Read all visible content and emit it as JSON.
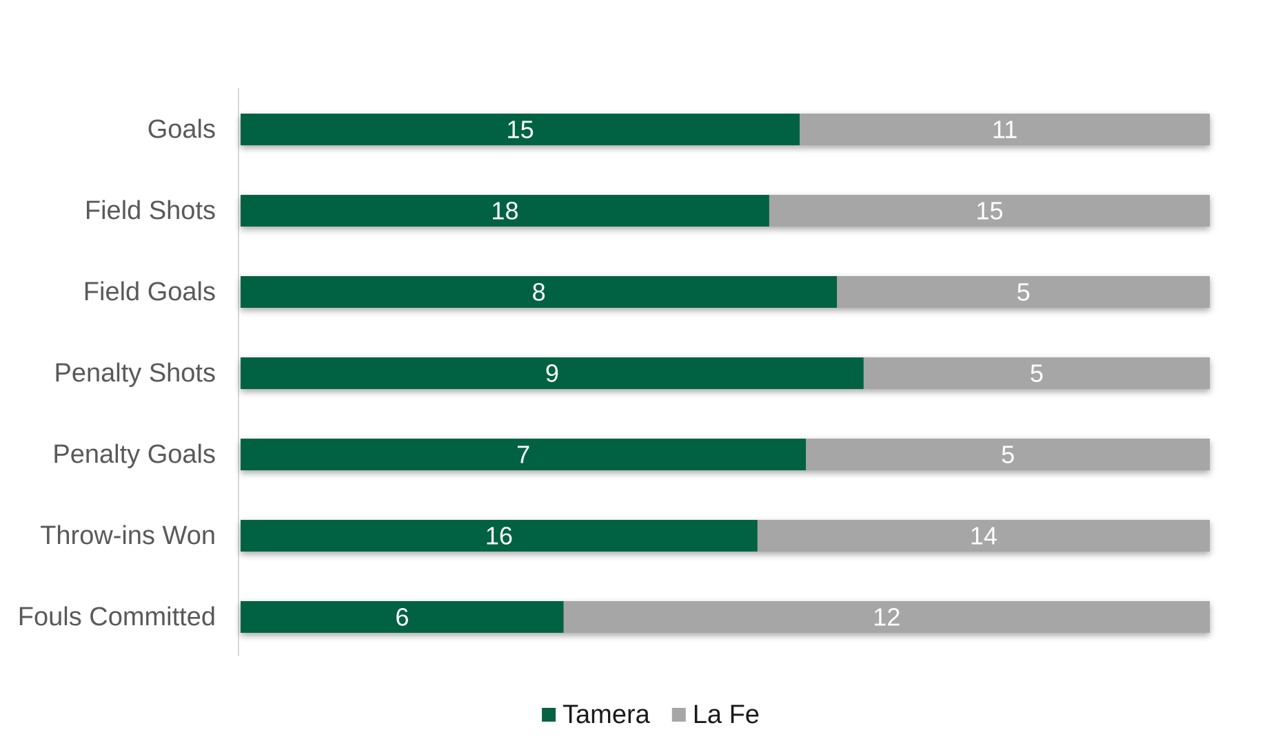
{
  "chart_data": {
    "type": "bar",
    "orientation": "horizontal",
    "stacking": "percent",
    "categories": [
      "Goals",
      "Field Shots",
      "Field Goals",
      "Penalty Shots",
      "Penalty Goals",
      "Throw-ins Won",
      "Fouls Committed"
    ],
    "series": [
      {
        "name": "Tamera",
        "values": [
          15,
          18,
          8,
          9,
          7,
          16,
          6
        ],
        "color": "#066242"
      },
      {
        "name": "La Fe",
        "values": [
          11,
          15,
          5,
          5,
          5,
          14,
          12
        ],
        "color": "#A6A6A6"
      }
    ],
    "title": "",
    "xlabel": "",
    "ylabel": "",
    "data_labels": true,
    "grid": false,
    "legend_position": "bottom"
  }
}
